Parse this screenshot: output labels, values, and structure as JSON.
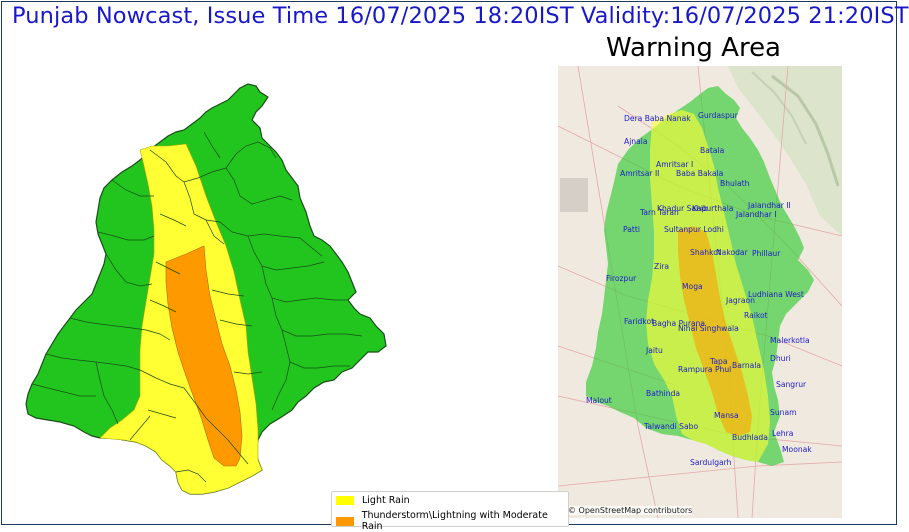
{
  "header": {
    "title": "Punjab Nowcast, Issue Time 16/07/2025 18:20IST  Validity:16/07/2025 21:20IST",
    "subtitle": "Warning Area"
  },
  "legend": {
    "items": [
      {
        "label": "Light Rain",
        "color": "#ffff00"
      },
      {
        "label": "Thunderstorm\\Lightning with Moderate Rain",
        "color": "#ff9900"
      }
    ]
  },
  "colors": {
    "no_warning": "#22c41e",
    "light_rain": "#ffff33",
    "moderate_rain": "#ff9900",
    "district_border": "#1a4d1a",
    "town_label": "#1c1cc8"
  },
  "map": {
    "attribution": "© OpenStreetMap contributors",
    "towns": [
      "Dera Baba Nanak",
      "Gurdaspur",
      "Ajnala",
      "Batala",
      "Amritsar I",
      "Amritsar II",
      "Baba Bakala",
      "Bhulath",
      "Jalandhar II",
      "Tarn Taran",
      "Khadur Sahib",
      "Kapurthala",
      "Jalandhar I",
      "Patti",
      "Sultanpur Lodhi",
      "Shahkot",
      "Nakodar",
      "Phillaur",
      "Zira",
      "Firozpur",
      "Moga",
      "Ludhiana West",
      "Jagraon",
      "Faridkot",
      "Bagha Purana",
      "Raikot",
      "Nihal Singhwala",
      "Malerkotla",
      "Jaitu",
      "Dhuri",
      "Tapa",
      "Rampura Phul",
      "Barnala",
      "Sangrur",
      "Malout",
      "Bathinda",
      "Sunam",
      "Mansa",
      "Talwandi Sabo",
      "Lehra",
      "Budhlada",
      "Moonak",
      "Sardulgarh"
    ]
  }
}
